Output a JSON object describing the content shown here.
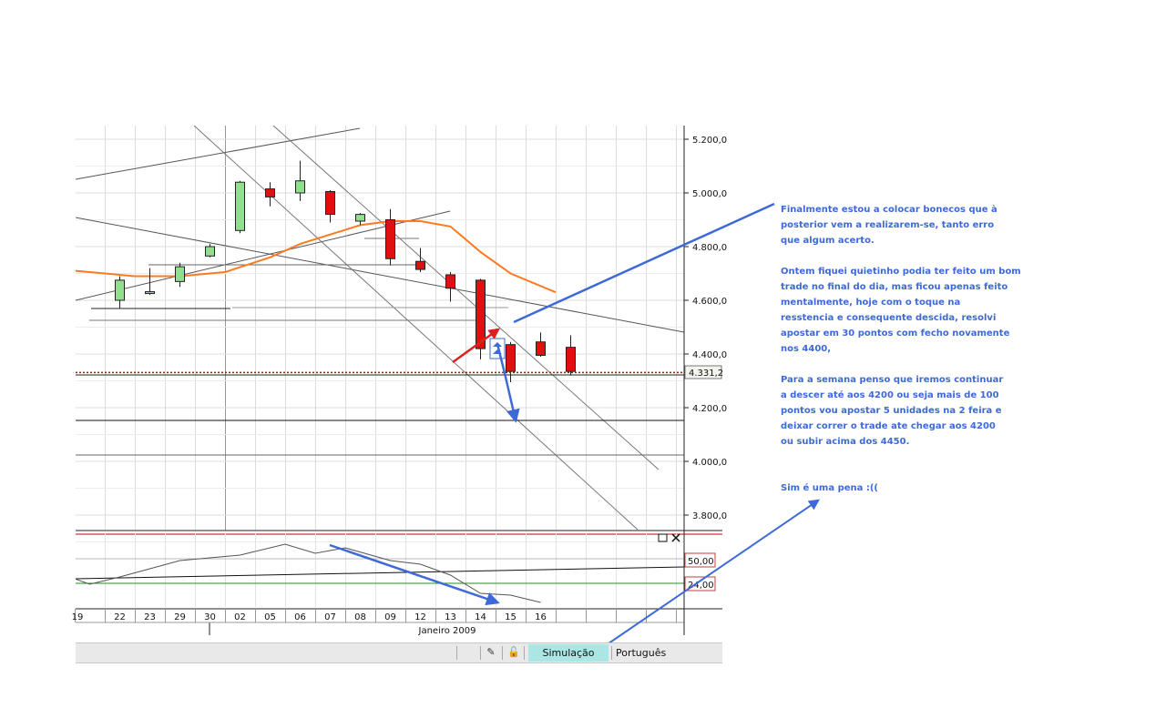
{
  "chart_data": {
    "type": "candlestick",
    "x_ticks": [
      "19",
      "22",
      "23",
      "29",
      "30",
      "02",
      "05",
      "06",
      "07",
      "08",
      "09",
      "12",
      "13",
      "14",
      "15",
      "16"
    ],
    "x_period_label": "Janeiro 2009",
    "y_ticks": [
      "5.200,0",
      "5.000,0",
      "4.800,0",
      "4.600,0",
      "4.400,0",
      "4.200,0",
      "4.000,0",
      "3.800,0"
    ],
    "ylim": [
      3740,
      5250
    ],
    "last_price_label": "4.331,2",
    "last_price": 4331,
    "candles": [
      {
        "x": 1,
        "open": 4600,
        "close": 4675,
        "high": 4690,
        "low": 4570
      },
      {
        "x": 2,
        "open": 4628,
        "close": 4632,
        "high": 4720,
        "low": 4620
      },
      {
        "x": 3,
        "open": 4670,
        "close": 4725,
        "high": 4740,
        "low": 4650
      },
      {
        "x": 4,
        "open": 4765,
        "close": 4800,
        "high": 4810,
        "low": 4760
      },
      {
        "x": 5,
        "open": 4860,
        "close": 5040,
        "high": 5045,
        "low": 4850
      },
      {
        "x": 6,
        "open": 5015,
        "close": 4985,
        "high": 5040,
        "low": 4950
      },
      {
        "x": 7,
        "open": 5000,
        "close": 5045,
        "high": 5120,
        "low": 4970
      },
      {
        "x": 8,
        "open": 5005,
        "close": 4920,
        "high": 5010,
        "low": 4890
      },
      {
        "x": 9,
        "open": 4895,
        "close": 4920,
        "high": 4925,
        "low": 4880
      },
      {
        "x": 10,
        "open": 4900,
        "close": 4755,
        "high": 4940,
        "low": 4730
      },
      {
        "x": 11,
        "open": 4745,
        "close": 4715,
        "high": 4795,
        "low": 4705
      },
      {
        "x": 12,
        "open": 4695,
        "close": 4645,
        "high": 4705,
        "low": 4595
      },
      {
        "x": 13,
        "open": 4675,
        "close": 4420,
        "high": 4680,
        "low": 4380
      },
      {
        "x": 14,
        "open": 4435,
        "close": 4335,
        "high": 4445,
        "low": 4295
      },
      {
        "x": 15,
        "open": 4445,
        "close": 4395,
        "high": 4480,
        "low": 4390
      },
      {
        "x": 16,
        "open": 4425,
        "close": 4335,
        "high": 4470,
        "low": 4320
      }
    ],
    "moving_average": [
      {
        "x": -0.5,
        "y": 4710
      },
      {
        "x": 1.5,
        "y": 4690
      },
      {
        "x": 3,
        "y": 4690
      },
      {
        "x": 4.5,
        "y": 4705
      },
      {
        "x": 6,
        "y": 4760
      },
      {
        "x": 7,
        "y": 4810
      },
      {
        "x": 8,
        "y": 4845
      },
      {
        "x": 9,
        "y": 4880
      },
      {
        "x": 10,
        "y": 4895
      },
      {
        "x": 11,
        "y": 4895
      },
      {
        "x": 12,
        "y": 4875
      },
      {
        "x": 13,
        "y": 4780
      },
      {
        "x": 14,
        "y": 4700
      },
      {
        "x": 15.5,
        "y": 4630
      }
    ],
    "indicator": {
      "levels": [
        "50,00",
        "24,00"
      ],
      "series": [
        {
          "x": -0.5,
          "y": 32
        },
        {
          "x": 0,
          "y": 26
        },
        {
          "x": 1,
          "y": 34
        },
        {
          "x": 3,
          "y": 52
        },
        {
          "x": 5,
          "y": 58
        },
        {
          "x": 6.5,
          "y": 70
        },
        {
          "x": 7.5,
          "y": 60
        },
        {
          "x": 8.5,
          "y": 66
        },
        {
          "x": 10,
          "y": 52
        },
        {
          "x": 11,
          "y": 48
        },
        {
          "x": 12,
          "y": 36
        },
        {
          "x": 13,
          "y": 16
        },
        {
          "x": 14,
          "y": 14
        },
        {
          "x": 15,
          "y": 6
        }
      ]
    }
  },
  "annotation": {
    "paragraph_1": [
      "Finalmente estou a colocar bonecos que à",
      "posterior vem a realizarem-se, tanto erro",
      "que algum acerto."
    ],
    "paragraph_2": [
      "Ontem fiquei quietinho podia ter feito um bom",
      "trade no final do dia, mas ficou apenas feito",
      "mentalmente, hoje com o toque na",
      "resstencia e consequente descida, resolvi",
      "apostar em 30 pontos com fecho novamente",
      "nos 4400,"
    ],
    "paragraph_3": [
      "Para a semana penso que iremos continuar",
      "a descer até aos 4200 ou seja mais de 100",
      "pontos vou apostar 5 unidades na 2 feira e",
      "deixar correr o trade ate chegar aos 4200",
      "ou subir acima dos 4450."
    ],
    "paragraph_4": [
      "Sim é uma pena :(("
    ]
  },
  "statusbar": {
    "mode_label": "Simulação",
    "language_label": "Português"
  },
  "colors": {
    "bear_candle": "#e01010",
    "bull_candle": "#90e090",
    "moving_average": "#ff7a20",
    "annotation_arrow": "#3e6ad8",
    "red_arrow": "#e02020",
    "price_line": "#c00000"
  }
}
